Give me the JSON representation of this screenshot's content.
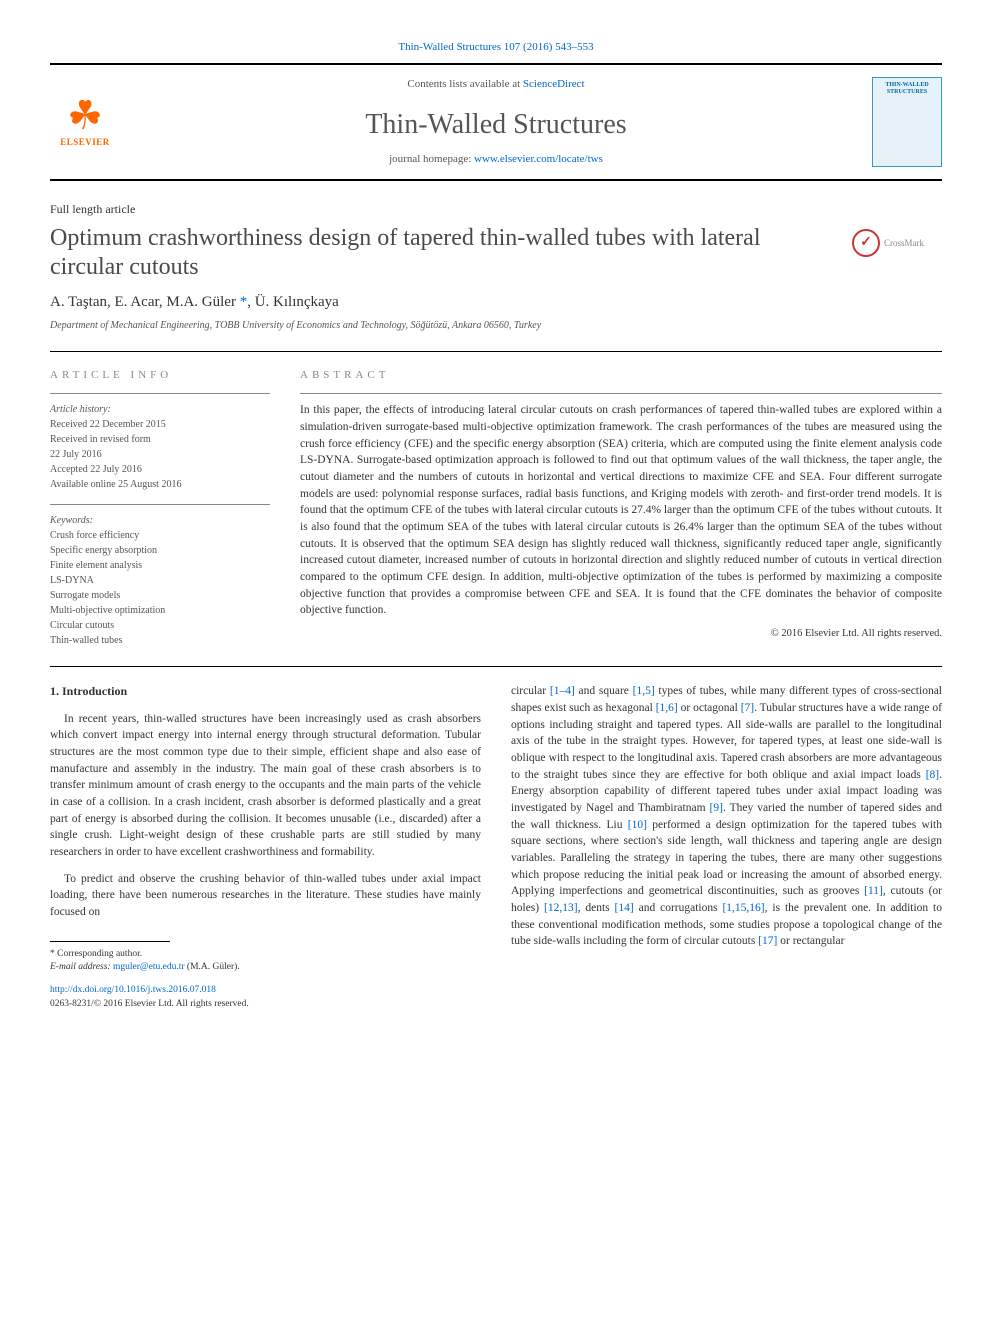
{
  "header": {
    "top_link_text": "Thin-Walled Structures 107 (2016) 543–553",
    "contents_prefix": "Contents lists available at ",
    "contents_link": "ScienceDirect",
    "journal_name": "Thin-Walled Structures",
    "homepage_prefix": "journal homepage: ",
    "homepage_url": "www.elsevier.com/locate/tws",
    "elsevier_label": "ELSEVIER",
    "cover_title": "THIN-WALLED STRUCTURES"
  },
  "article": {
    "type": "Full length article",
    "title": "Optimum crashworthiness design of tapered thin-walled tubes with lateral circular cutouts",
    "crossmark": "CrossMark",
    "authors": "A. Taştan, E. Acar, M.A. Güler ",
    "corr_marker": "*",
    "authors_tail": ", Ü. Kılınçkaya",
    "affiliation": "Department of Mechanical Engineering, TOBB University of Economics and Technology, Söğütözü, Ankara 06560, Turkey"
  },
  "info": {
    "heading": "article info",
    "history_label": "Article history:",
    "history": [
      "Received 22 December 2015",
      "Received in revised form",
      "22 July 2016",
      "Accepted 22 July 2016",
      "Available online 25 August 2016"
    ],
    "keywords_label": "Keywords:",
    "keywords": [
      "Crush force efficiency",
      "Specific energy absorption",
      "Finite element analysis",
      "LS-DYNA",
      "Surrogate models",
      "Multi-objective optimization",
      "Circular cutouts",
      "Thin-walled tubes"
    ]
  },
  "abstract": {
    "heading": "abstract",
    "text": "In this paper, the effects of introducing lateral circular cutouts on crash performances of tapered thin-walled tubes are explored within a simulation-driven surrogate-based multi-objective optimization framework. The crash performances of the tubes are measured using the crush force efficiency (CFE) and the specific energy absorption (SEA) criteria, which are computed using the finite element analysis code LS-DYNA. Surrogate-based optimization approach is followed to find out that optimum values of the wall thickness, the taper angle, the cutout diameter and the numbers of cutouts in horizontal and vertical directions to maximize CFE and SEA. Four different surrogate models are used: polynomial response surfaces, radial basis functions, and Kriging models with zeroth- and first-order trend models. It is found that the optimum CFE of the tubes with lateral circular cutouts is 27.4% larger than the optimum CFE of the tubes without cutouts. It is also found that the optimum SEA of the tubes with lateral circular cutouts is 26.4% larger than the optimum SEA of the tubes without cutouts. It is observed that the optimum SEA design has slightly reduced wall thickness, significantly reduced taper angle, significantly increased cutout diameter, increased number of cutouts in horizontal direction and slightly reduced number of cutouts in vertical direction compared to the optimum CFE design. In addition, multi-objective optimization of the tubes is performed by maximizing a composite objective function that provides a compromise between CFE and SEA. It is found that the CFE dominates the behavior of composite objective function.",
    "copyright": "© 2016 Elsevier Ltd. All rights reserved."
  },
  "sections": {
    "intro_heading": "1. Introduction",
    "col1_p1": "In recent years, thin-walled structures have been increasingly used as crash absorbers which convert impact energy into internal energy through structural deformation. Tubular structures are the most common type due to their simple, efficient shape and also ease of manufacture and assembly in the industry. The main goal of these crash absorbers is to transfer minimum amount of crash energy to the occupants and the main parts of the vehicle in case of a collision. In a crash incident, crash absorber is deformed plastically and a great part of energy is absorbed during the collision. It becomes unusable (i.e., discarded) after a single crush. Light-weight design of these crushable parts are still studied by many researchers in order to have excellent crashworthiness and formability.",
    "col1_p2": "To predict and observe the crushing behavior of thin-walled tubes under axial impact loading, there have been numerous researches in the literature. These studies have mainly focused on",
    "col2_p1_a": "circular ",
    "ref_1_4": "[1–4]",
    "col2_p1_b": " and square ",
    "ref_1_5": "[1,5]",
    "col2_p1_c": " types of tubes, while many different types of cross-sectional shapes exist such as hexagonal ",
    "ref_1_6": "[1,6]",
    "col2_p1_d": " or octagonal ",
    "ref_7": "[7]",
    "col2_p1_e": ". Tubular structures have a wide range of options including straight and tapered types. All side-walls are parallel to the longitudinal axis of the tube in the straight types. However, for tapered types, at least one side-wall is oblique with respect to the longitudinal axis. Tapered crash absorbers are more advantageous to the straight tubes since they are effective for both oblique and axial impact loads ",
    "ref_8": "[8]",
    "col2_p1_f": ". Energy absorption capability of different tapered tubes under axial impact loading was investigated by Nagel and Thambiratnam ",
    "ref_9": "[9]",
    "col2_p1_g": ". They varied the number of tapered sides and the wall thickness. Liu ",
    "ref_10": "[10]",
    "col2_p1_h": " performed a design optimization for the tapered tubes with square sections, where section's side length, wall thickness and tapering angle are design variables. Paralleling the strategy in tapering the tubes, there are many other suggestions which propose reducing the initial peak load or increasing the amount of absorbed energy. Applying imperfections and geometrical discontinuities, such as grooves ",
    "ref_11": "[11]",
    "col2_p1_i": ", cutouts (or holes) ",
    "ref_12_13": "[12,13]",
    "col2_p1_j": ", dents ",
    "ref_14": "[14]",
    "col2_p1_k": " and corrugations ",
    "ref_1_15_16": "[1,15,16]",
    "col2_p1_l": ", is the prevalent one. In addition to these conventional modification methods, some studies propose a topological change of the tube side-walls including the form of circular cutouts ",
    "ref_17": "[17]",
    "col2_p1_m": " or rectangular"
  },
  "footnote": {
    "corr_label": "* Corresponding author.",
    "email_label": "E-mail address: ",
    "email": "mguler@etu.edu.tr",
    "email_tail": " (M.A. Güler)."
  },
  "doi": {
    "url": "http://dx.doi.org/10.1016/j.tws.2016.07.018",
    "issn_line": "0263-8231/© 2016 Elsevier Ltd. All rights reserved."
  },
  "colors": {
    "link": "#0066cc",
    "text": "#333333",
    "muted": "#555555",
    "heading_gray": "#888888",
    "elsevier_orange": "#ff6600",
    "crossmark_red": "#cc3333"
  }
}
